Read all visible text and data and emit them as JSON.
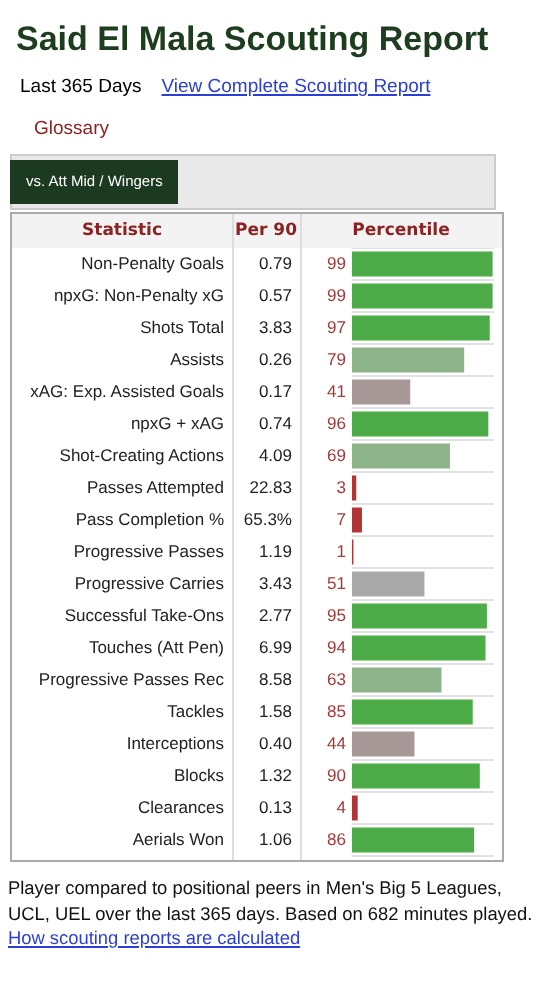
{
  "chart_data": {
    "type": "bar",
    "orientation": "horizontal",
    "title": "Said El Mala Scouting Report",
    "subtitle": "vs. Att Mid / Wingers",
    "categories": [
      "Non-Penalty Goals",
      "npxG: Non-Penalty xG",
      "Shots Total",
      "Assists",
      "xAG: Exp. Assisted Goals",
      "npxG + xAG",
      "Shot-Creating Actions",
      "Passes Attempted",
      "Pass Completion %",
      "Progressive Passes",
      "Progressive Carries",
      "Successful Take-Ons",
      "Touches (Att Pen)",
      "Progressive Passes Rec",
      "Tackles",
      "Interceptions",
      "Blocks",
      "Clearances",
      "Aerials Won"
    ],
    "values": [
      99,
      99,
      97,
      79,
      41,
      96,
      69,
      3,
      7,
      1,
      51,
      95,
      94,
      63,
      85,
      44,
      90,
      4,
      86
    ],
    "colors": [
      "#4dab48",
      "#4dab48",
      "#4dab48",
      "#8db48b",
      "#a89898",
      "#4dab48",
      "#8db48b",
      "#b03434",
      "#b03434",
      "#b03434",
      "#a9a9a9",
      "#4dab48",
      "#4dab48",
      "#8db48b",
      "#4dab48",
      "#a89898",
      "#4dab48",
      "#b03434",
      "#4dab48"
    ],
    "xlim": [
      0,
      100
    ],
    "tick_labels": "y",
    "data_labels": true,
    "grid": "y",
    "legend": false,
    "annotations": [
      "Last 365 Days",
      "View Complete Scouting Report",
      "Glossary",
      "Statistic",
      "Per 90",
      "Percentile",
      "0.79",
      "0.57",
      "3.83",
      "0.26",
      "0.17",
      "0.74",
      "4.09",
      "22.83",
      "65.3%",
      "1.19",
      "3.43",
      "2.77",
      "6.99",
      "8.58",
      "1.58",
      "0.40",
      "1.32",
      "0.13",
      "1.06",
      "Player compared to positional peers in Men's Big 5 Leagues, UCL, UEL over the last 365 days. Based on 682 minutes played.",
      "How scouting reports are calculated"
    ]
  }
}
